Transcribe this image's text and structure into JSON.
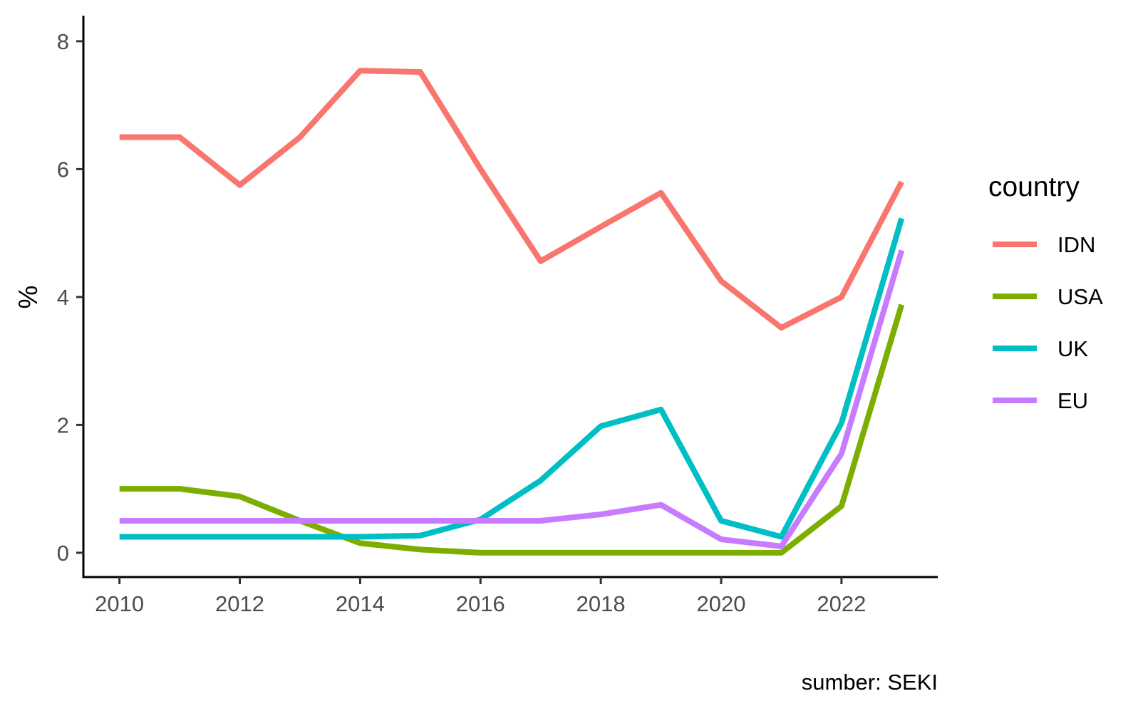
{
  "chart_data": {
    "type": "line",
    "ylabel": "%",
    "caption": "sumber: SEKI",
    "legend_title": "country",
    "legend_position": "right",
    "grid": false,
    "xlim": [
      2009.4,
      2023.6
    ],
    "ylim": [
      -0.38,
      8.4
    ],
    "x_ticks": [
      "2010",
      "2012",
      "2014",
      "2016",
      "2018",
      "2020",
      "2022"
    ],
    "y_ticks": [
      "0",
      "2",
      "4",
      "6",
      "8"
    ],
    "x": [
      2010,
      2011,
      2012,
      2013,
      2014,
      2015,
      2016,
      2017,
      2018,
      2019,
      2020,
      2021,
      2022,
      2023
    ],
    "series": [
      {
        "name": "IDN",
        "color": "#F8766D",
        "values": [
          6.5,
          6.5,
          5.75,
          6.5,
          7.54,
          7.52,
          6.0,
          4.56,
          5.1,
          5.63,
          4.25,
          3.52,
          4.0,
          5.8
        ]
      },
      {
        "name": "USA",
        "color": "#7CAE00",
        "values": [
          1.0,
          1.0,
          0.88,
          0.5,
          0.15,
          0.05,
          0.0,
          0.0,
          0.0,
          0.0,
          0.0,
          0.0,
          0.73,
          3.88
        ]
      },
      {
        "name": "UK",
        "color": "#00BFC4",
        "values": [
          0.25,
          0.25,
          0.25,
          0.25,
          0.25,
          0.27,
          0.52,
          1.13,
          1.98,
          2.24,
          0.5,
          0.25,
          2.03,
          5.23
        ]
      },
      {
        "name": "EU",
        "color": "#C77CFF",
        "values": [
          0.5,
          0.5,
          0.5,
          0.5,
          0.5,
          0.5,
          0.5,
          0.5,
          0.6,
          0.75,
          0.21,
          0.1,
          1.55,
          4.73
        ]
      }
    ]
  }
}
